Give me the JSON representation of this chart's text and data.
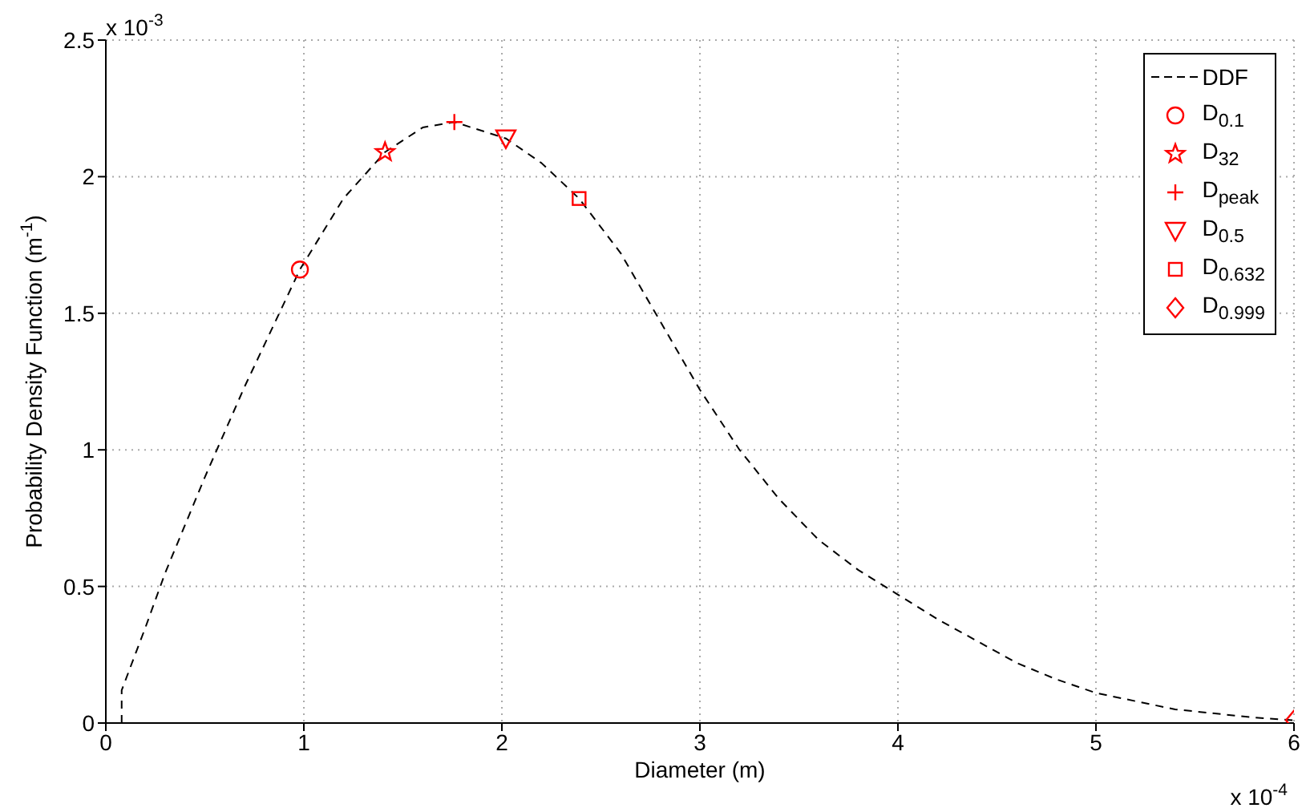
{
  "chart_data": {
    "type": "line",
    "xlabel": "Diameter (m)",
    "ylabel": "Probability Density Function (m$^{-1}$)",
    "annotations": [
      "x 10$^{-3}$",
      "x 10$^{-4}$"
    ],
    "xlim": [
      0,
      6
    ],
    "xticks": [
      0,
      1,
      2,
      3,
      4,
      5,
      6
    ],
    "ylim": [
      0,
      2.5
    ],
    "yticks": [
      0,
      0.5,
      1,
      1.5,
      2,
      2.5
    ],
    "grid": true,
    "legend": "top right",
    "series": [
      {
        "name": "DDF",
        "color": "#000000",
        "line_style": "dashed",
        "marker": "none",
        "x": [
          0.08,
          0.08,
          0.2,
          0.3,
          0.5,
          0.7,
          0.98,
          1.2,
          1.41,
          1.6,
          1.76,
          2.02,
          2.2,
          2.39,
          2.6,
          2.8,
          3.0,
          3.2,
          3.4,
          3.6,
          3.8,
          4.0,
          4.2,
          4.4,
          4.6,
          4.8,
          5.0,
          5.2,
          5.4,
          5.6,
          5.8,
          6.0
        ],
        "values": [
          0,
          0.12,
          0.35,
          0.55,
          0.9,
          1.23,
          1.66,
          1.92,
          2.09,
          2.18,
          2.2,
          2.14,
          2.05,
          1.92,
          1.72,
          1.47,
          1.22,
          1.0,
          0.82,
          0.67,
          0.56,
          0.47,
          0.38,
          0.3,
          0.22,
          0.16,
          0.11,
          0.08,
          0.05,
          0.035,
          0.02,
          0.01
        ]
      },
      {
        "name": "D$_{0.1}$",
        "type": "scatter",
        "color": "#ff0000",
        "marker": "circle",
        "x": [
          0.98
        ],
        "values": [
          1.66
        ]
      },
      {
        "name": "D$_{32}$",
        "type": "scatter",
        "color": "#ff0000",
        "marker": "star",
        "x": [
          1.41
        ],
        "values": [
          2.09
        ]
      },
      {
        "name": "D$_{peak}$",
        "type": "scatter",
        "color": "#ff0000",
        "marker": "cross",
        "x": [
          1.76
        ],
        "values": [
          2.2
        ]
      },
      {
        "name": "D$_{0.5}$",
        "type": "scatter",
        "color": "#ff0000",
        "marker": "triangle",
        "x": [
          2.02
        ],
        "values": [
          2.14
        ]
      },
      {
        "name": "D$_{0.632}$",
        "type": "scatter",
        "color": "#ff0000",
        "marker": "square",
        "x": [
          2.39
        ],
        "values": [
          1.92
        ]
      },
      {
        "name": "D$_{0.999}$",
        "type": "scatter",
        "color": "#ff0000",
        "marker": "diamond",
        "x": [
          6.0
        ],
        "values": [
          0.01
        ]
      }
    ]
  }
}
